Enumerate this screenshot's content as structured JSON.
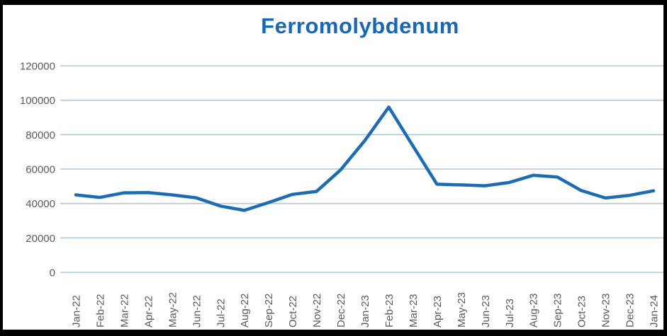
{
  "chart_data": {
    "type": "line",
    "title": "Ferromolybdenum",
    "xlabel": "",
    "ylabel": "",
    "ylim": [
      0,
      120000
    ],
    "yticks": [
      0,
      20000,
      40000,
      60000,
      80000,
      100000,
      120000
    ],
    "ytick_labels": [
      "0",
      "20000",
      "40000",
      "60000",
      "80000",
      "100000",
      "120000"
    ],
    "grid": true,
    "legend_position": "none",
    "categories": [
      "Jan-22",
      "Feb-22",
      "Mar-22",
      "Apr-22",
      "May-22",
      "Jun-22",
      "Jul-22",
      "Aug-22",
      "Sep-22",
      "Oct-22",
      "Nov-22",
      "Dec-22",
      "Jan-23",
      "Feb-23",
      "Mar-23",
      "Apr-23",
      "May-23",
      "Jun-23",
      "Jul-23",
      "Aug-23",
      "Sep-23",
      "Oct-23",
      "Nov-23",
      "Dec-23",
      "Jan-24"
    ],
    "series": [
      {
        "name": "Ferromolybdenum",
        "values": [
          45000,
          43500,
          46200,
          46300,
          45000,
          43300,
          38500,
          36000,
          40500,
          45300,
          47000,
          59500,
          76500,
          96000,
          73500,
          51200,
          50800,
          50300,
          52200,
          56400,
          55400,
          47500,
          43200,
          44700,
          47400
        ]
      }
    ]
  },
  "colors": {
    "title": "#1467bd",
    "line": "#1c6bb5",
    "gridline": "#aec9de",
    "axis_label": "#5a5a5a",
    "frame": "#000000",
    "background": "#ffffff"
  }
}
